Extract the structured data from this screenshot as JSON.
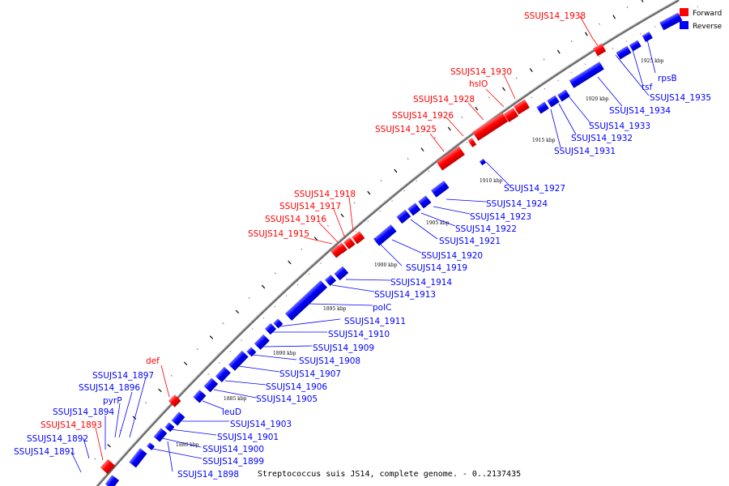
{
  "title": "Streptococcus suis JS14, complete genome. - 0..2137435",
  "legend": [
    {
      "label": "Forward",
      "color": "#ff0000"
    },
    {
      "label": "Reverse",
      "color": "#0000ff"
    }
  ],
  "colors": {
    "forward": "#ff0000",
    "reverse": "#0000ff",
    "backbone": "#555555"
  },
  "kbp_ticks": [
    "1880 kbp",
    "1885 kbp",
    "1890 kbp",
    "1895 kbp",
    "1900 kbp",
    "1905 kbp",
    "1910 kbp",
    "1915 kbp",
    "1920 kbp",
    "1925 kbp"
  ],
  "forward_labels": [
    "SSUJS14_1938",
    "SSUJS14_1930",
    "hslO",
    "SSUJS14_1928",
    "SSUJS14_1926",
    "SSUJS14_1925",
    "SSUJS14_1918",
    "SSUJS14_1917",
    "SSUJS14_1916",
    "SSUJS14_1915",
    "def",
    "SSUJS14_1893"
  ],
  "reverse_labels": [
    "rpsB",
    "tsf",
    "SSUJS14_1935",
    "SSUJS14_1934",
    "SSUJS14_1933",
    "SSUJS14_1932",
    "SSUJS14_1931",
    "SSUJS14_1927",
    "SSUJS14_1924",
    "SSUJS14_1923",
    "SSUJS14_1922",
    "SSUJS14_1921",
    "SSUJS14_1920",
    "SSUJS14_1919",
    "SSUJS14_1914",
    "SSUJS14_1913",
    "polC",
    "SSUJS14_1911",
    "SSUJS14_1910",
    "SSUJS14_1909",
    "SSUJS14_1908",
    "SSUJS14_1907",
    "SSUJS14_1906",
    "SSUJS14_1905",
    "leuD",
    "SSUJS14_1903",
    "SSUJS14_1901",
    "SSUJS14_1900",
    "SSUJS14_1899",
    "SSUJS14_1898",
    "SSUJS14_1897",
    "SSUJS14_1896",
    "pyrP",
    "SSUJS14_1894",
    "SSUJS14_1892",
    "SSUJS14_1891"
  ]
}
